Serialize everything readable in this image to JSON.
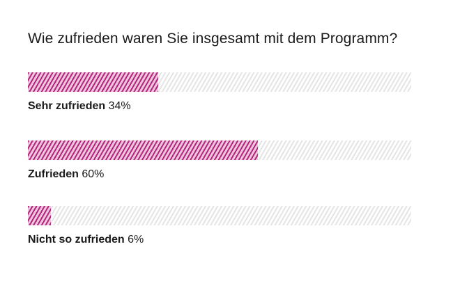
{
  "chart_data": {
    "type": "bar",
    "orientation": "horizontal",
    "title": "Wie zufrieden waren Sie insgesamt mit dem Programm?",
    "categories": [
      "Sehr zufrieden",
      "Zufrieden",
      "Nicht so zufrieden"
    ],
    "values": [
      34,
      60,
      6
    ],
    "value_labels": [
      "34%",
      "60%",
      "6%"
    ],
    "xlim": [
      0,
      100
    ],
    "xlabel": "",
    "ylabel": "",
    "grid": false,
    "colors": {
      "fill": "#b3267d",
      "track": "#e4e4e4"
    }
  }
}
